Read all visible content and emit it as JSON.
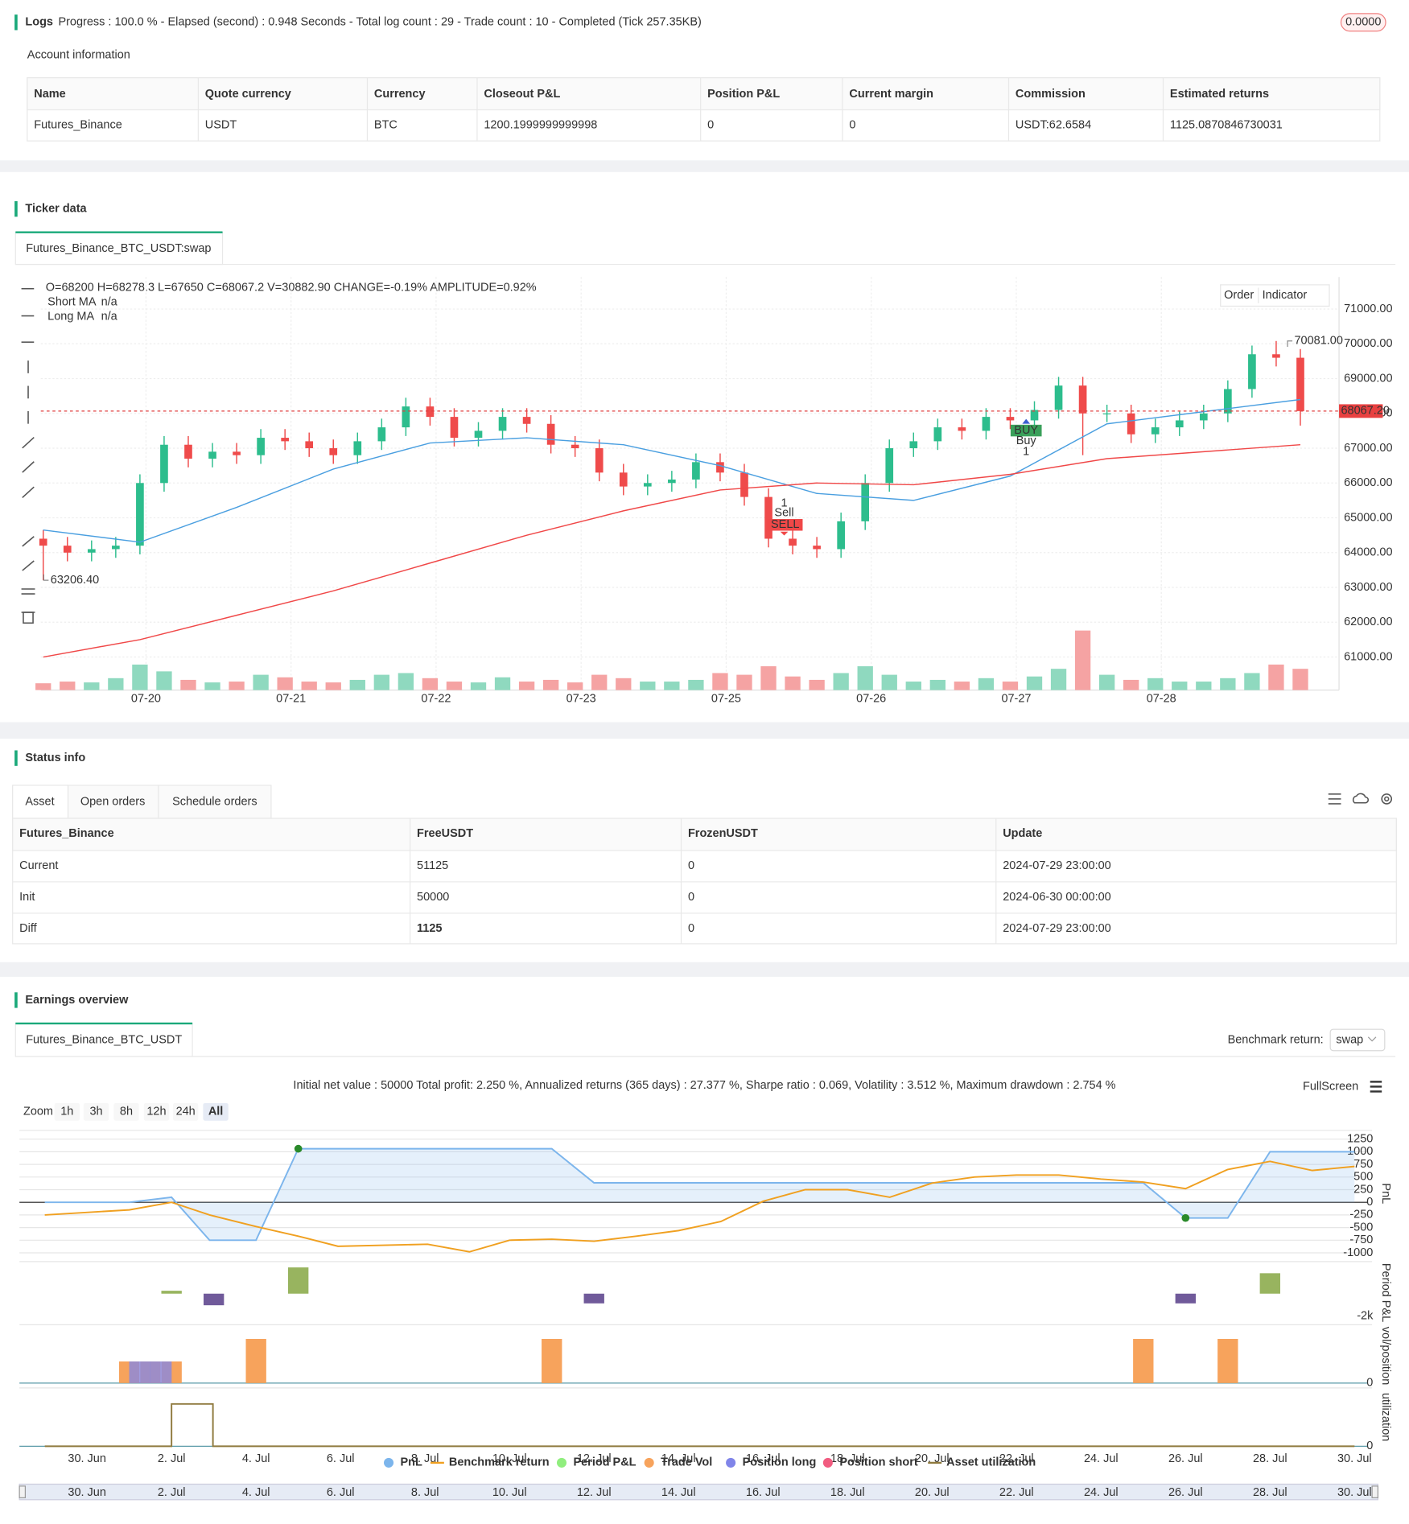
{
  "logs": {
    "title": "Logs",
    "status": "Progress : 100.0 % - Elapsed (second) : 0.948 Seconds - Total log count : 29 - Trade count : 10 - Completed (Tick 257.35KB)",
    "badge": "0.0000"
  },
  "account": {
    "title": "Account information",
    "headers": [
      "Name",
      "Quote currency",
      "Currency",
      "Closeout P&L",
      "Position P&L",
      "Current margin",
      "Commission",
      "Estimated returns"
    ],
    "rows": [
      [
        "Futures_Binance",
        "USDT",
        "BTC",
        "1200.1999999999998",
        "0",
        "0",
        "USDT:62.6584",
        "1125.0870846730031"
      ]
    ]
  },
  "ticker": {
    "title": "Ticker data",
    "tab": "Futures_Binance_BTC_USDT:swap",
    "ohlc": "O=68200 H=68278.3 L=67650 C=68067.2 V=30882.90 CHANGE=-0.19% AMPLITUDE=0.92%",
    "buttons": [
      "Order",
      "Indicator"
    ],
    "signals": [
      {
        "text": "SELL",
        "name": "Sell",
        "count": "1"
      },
      {
        "text": "BUY",
        "name": "Buy",
        "count": "1"
      }
    ]
  },
  "status": {
    "title": "Status info",
    "tabs": [
      "Asset",
      "Open orders",
      "Schedule orders"
    ],
    "headers": [
      "Futures_Binance",
      "FreeUSDT",
      "FrozenUSDT",
      "Update"
    ],
    "rows": [
      [
        "Current",
        "51125",
        "0",
        "2024-07-29 23:00:00"
      ],
      [
        "Init",
        "50000",
        "0",
        "2024-06-30 00:00:00"
      ],
      [
        "Diff",
        "1125",
        "0",
        "2024-07-29 23:00:00"
      ]
    ]
  },
  "earnings": {
    "title": "Earnings overview",
    "tab": "Futures_Binance_BTC_USDT",
    "benchmark_label": "Benchmark return:",
    "benchmark_value": "swap",
    "summary": "Initial net value : 50000 Total profit: 2.250 %, Annualized returns (365 days) : 27.377 %, Sharpe ratio : 0.069, Volatility : 3.512 %, Maximum drawdown : 2.754 %",
    "fullscreen": "FullScreen",
    "zoom_label": "Zoom",
    "zoom": [
      "1h",
      "3h",
      "8h",
      "12h",
      "24h",
      "All"
    ]
  },
  "chart_data": [
    {
      "type": "candlestick",
      "categories": [
        null,
        null,
        null,
        null,
        null,
        null,
        null,
        null,
        null,
        null,
        null,
        null,
        null,
        null,
        null,
        null,
        null,
        null,
        null,
        null,
        null,
        null,
        null,
        null,
        null,
        null,
        null,
        null,
        null,
        null,
        null,
        null,
        null,
        null,
        null,
        null,
        null,
        null,
        null,
        null,
        null,
        null,
        null,
        null,
        null,
        null,
        null,
        null,
        null,
        null,
        null,
        null,
        null
      ],
      "open": [
        64400,
        64200,
        64000,
        64100,
        64200,
        66000,
        67100,
        66700,
        66900,
        66800,
        67300,
        67200,
        67000,
        66800,
        67200,
        67600,
        68200,
        67900,
        67300,
        67500,
        67900,
        67700,
        67100,
        67000,
        66300,
        65900,
        66000,
        66100,
        66600,
        66300,
        65600,
        64400,
        64200,
        64100,
        64900,
        66000,
        67000,
        67200,
        67600,
        67500,
        67900,
        67800,
        68100,
        68800,
        68000,
        68000,
        67400,
        67600,
        67800,
        68000,
        68700,
        69700,
        69600
      ],
      "high": [
        64650,
        64450,
        64350,
        64450,
        66250,
        67350,
        67350,
        67150,
        67150,
        67550,
        67550,
        67450,
        67250,
        67450,
        67850,
        68450,
        68450,
        68150,
        67750,
        68150,
        68150,
        67950,
        67350,
        67250,
        66550,
        66250,
        66350,
        66850,
        66850,
        66550,
        65850,
        64650,
        64450,
        65150,
        66250,
        67250,
        67450,
        67850,
        67850,
        68150,
        68150,
        68350,
        69050,
        69050,
        68250,
        68250,
        67850,
        68050,
        68250,
        68950,
        69950,
        70081,
        69850
      ],
      "low": [
        63206.4,
        63750,
        63750,
        63850,
        63950,
        65750,
        66450,
        66450,
        66550,
        66550,
        66950,
        66750,
        66550,
        66550,
        66950,
        67350,
        67650,
        67050,
        67050,
        67250,
        67450,
        66850,
        66750,
        66050,
        65650,
        65650,
        65750,
        65850,
        66050,
        65350,
        64150,
        63950,
        63850,
        63850,
        64650,
        65750,
        66750,
        66950,
        67250,
        67250,
        67550,
        67550,
        67850,
        66800,
        67750,
        67150,
        67150,
        67350,
        67550,
        67750,
        68450,
        69350,
        67650
      ],
      "close": [
        64200,
        64000,
        64100,
        64200,
        66000,
        67100,
        66700,
        66900,
        66800,
        67300,
        67200,
        67000,
        66800,
        67200,
        67600,
        68200,
        67900,
        67300,
        67500,
        67900,
        67700,
        67100,
        67000,
        66300,
        65900,
        66000,
        66100,
        66600,
        66300,
        65600,
        64400,
        64200,
        64100,
        64900,
        66000,
        67000,
        67200,
        67600,
        67500,
        67900,
        67800,
        68100,
        68800,
        68000,
        68000,
        67400,
        67600,
        67800,
        68000,
        68700,
        69700,
        69600,
        68067.2
      ],
      "volume": [
        8,
        10,
        9,
        14,
        30,
        22,
        12,
        9,
        10,
        18,
        15,
        10,
        9,
        12,
        18,
        20,
        14,
        10,
        9,
        15,
        10,
        12,
        9,
        18,
        14,
        10,
        10,
        12,
        20,
        18,
        28,
        16,
        12,
        20,
        28,
        18,
        10,
        12,
        10,
        14,
        10,
        16,
        25,
        70,
        18,
        12,
        14,
        10,
        10,
        14,
        20,
        30,
        25
      ],
      "colors": {
        "up": "#2dbd8d",
        "down": "#ef4b4b",
        "up_volume": "#8fd9bf",
        "down_volume": "#f5a3a3"
      },
      "xlim": [
        -0.1,
        53.6
      ],
      "ylim": [
        60050,
        71920
      ],
      "volume_ylim": [
        0,
        80
      ],
      "yticks": [
        {
          "value": 61000,
          "label": "61000.00"
        },
        {
          "value": 62000,
          "label": "62000.00"
        },
        {
          "value": 63000,
          "label": "63000.00"
        },
        {
          "value": 64000,
          "label": "64000.00"
        },
        {
          "value": 65000,
          "label": "65000.00"
        },
        {
          "value": 66000,
          "label": "66000.00"
        },
        {
          "value": 67000,
          "label": "67000.00"
        },
        {
          "value": 68000,
          "label": "68000.00"
        },
        {
          "value": 69000,
          "label": "69000.00"
        },
        {
          "value": 70000,
          "label": "70000.00"
        },
        {
          "value": 71000,
          "label": "71000.00"
        }
      ],
      "xticks": [
        {
          "value": 4.25,
          "label": "07-20"
        },
        {
          "value": 10.25,
          "label": "07-21"
        },
        {
          "value": 16.25,
          "label": "07-22"
        },
        {
          "value": 22.25,
          "label": "07-23"
        },
        {
          "value": 28.25,
          "label": "07-25"
        },
        {
          "value": 34.25,
          "label": "07-26"
        },
        {
          "value": 40.25,
          "label": "07-27"
        },
        {
          "value": 46.25,
          "label": "07-28"
        }
      ],
      "grid": true,
      "series": [
        {
          "name": "Short MA",
          "value_label": "n/a",
          "label_color": "#f0a030",
          "color": "#4a9fe0",
          "x": [
            0,
            4,
            8,
            12,
            16,
            20,
            24,
            28,
            32,
            36,
            40,
            44,
            48,
            52
          ],
          "values": [
            64650,
            64300,
            65300,
            66400,
            67150,
            67300,
            67100,
            66500,
            65700,
            65500,
            66200,
            67700,
            68050,
            68400
          ]
        },
        {
          "name": "Long MA",
          "value_label": "n/a",
          "label_color": "#9b59b6",
          "color": "#f04848",
          "x": [
            0,
            4,
            8,
            12,
            16,
            20,
            24,
            28,
            32,
            36,
            40,
            44,
            48,
            52
          ],
          "values": [
            61000,
            61500,
            62200,
            62900,
            63700,
            64500,
            65200,
            65800,
            66000,
            65950,
            66250,
            66700,
            66900,
            67100
          ]
        }
      ],
      "annotations": [
        {
          "value": 70081,
          "label": "70081.00"
        },
        {
          "value": 63206.4,
          "label": "63206.40"
        }
      ],
      "last_price": {
        "value": 68067.2,
        "label": "68067.20"
      }
    },
    {
      "type": "line",
      "y_label": "PnL",
      "xlim": [
        -1.6,
        30.3
      ],
      "ylim": [
        -1115,
        1385
      ],
      "grid": true,
      "yticks": [
        1250,
        1000,
        750,
        500,
        250,
        0,
        -250,
        -500,
        -750,
        -1000
      ],
      "series": [
        {
          "name": "PnL",
          "color": "#7cb5ec",
          "x": [
            -1,
            1,
            2,
            2.9,
            4,
            5,
            11,
            12,
            25,
            26,
            27,
            28,
            30
          ],
          "values": [
            0,
            0,
            100,
            -750,
            -750,
            1060,
            1060,
            385,
            385,
            -310,
            -310,
            1000,
            1000
          ]
        },
        {
          "name": "Benchmark return",
          "color": "#f0a020",
          "x": [
            -1,
            1,
            2,
            2.9,
            4,
            5,
            5.94,
            8.06,
            9.05,
            10,
            11,
            12,
            13,
            14,
            15,
            16,
            17,
            18,
            19,
            20,
            21,
            22,
            23,
            24,
            25,
            26,
            27,
            28,
            29,
            30
          ],
          "values": [
            -250,
            -150,
            0,
            -250,
            -480,
            -670,
            -870,
            -830,
            -980,
            -750,
            -730,
            -770,
            -670,
            -560,
            -380,
            20,
            250,
            250,
            100,
            380,
            500,
            540,
            540,
            460,
            400,
            270,
            650,
            810,
            630,
            710
          ]
        }
      ]
    },
    {
      "type": "bar",
      "y_label": "Period P&L",
      "xlim": [
        -1.6,
        30.3
      ],
      "ylim": [
        -2350,
        2700
      ],
      "yticks": [
        {
          "value": -2000,
          "label": "-2k"
        }
      ],
      "bar_colors": {
        "positive": "#98b45f",
        "negative": "#705a9a"
      },
      "series": [
        {
          "name": "Period P&L",
          "color": "#90ee7e",
          "x": [
            2,
            3,
            5,
            12,
            26,
            28
          ],
          "values": [
            260,
            -1040,
            2350,
            -870,
            -870,
            1830
          ]
        }
      ]
    },
    {
      "type": "bar",
      "y_label": "vol/position",
      "xlim": [
        -1.6,
        30.3
      ],
      "ylim": [
        0,
        60
      ],
      "yticks": [
        0
      ],
      "series": [
        {
          "name": "Trade Vol",
          "color": "#f7a35c",
          "x": [
            1,
            1.5,
            2,
            4,
            11,
            25,
            27
          ],
          "values": [
            23,
            23,
            23,
            47,
            47,
            47,
            47
          ]
        },
        {
          "name": "Position long",
          "color": "#8085e9",
          "x": [
            1.25,
            1.75
          ],
          "values": [
            23,
            23
          ]
        },
        {
          "name": "Position short",
          "color": "#f15c80",
          "x": [],
          "values": []
        }
      ]
    },
    {
      "type": "line",
      "y_label": "utilization",
      "xlim": [
        -1.6,
        30.3
      ],
      "ylim": [
        0,
        60
      ],
      "yticks": [
        0
      ],
      "xticks": [
        {
          "value": 0,
          "label": "30. Jun"
        },
        {
          "value": 2,
          "label": "2. Jul"
        },
        {
          "value": 4,
          "label": "4. Jul"
        },
        {
          "value": 6,
          "label": "6. Jul"
        },
        {
          "value": 8,
          "label": "8. Jul"
        },
        {
          "value": 10,
          "label": "10. Jul"
        },
        {
          "value": 12,
          "label": "12. Jul"
        },
        {
          "value": 14,
          "label": "14. Jul"
        },
        {
          "value": 16,
          "label": "16. Jul"
        },
        {
          "value": 18,
          "label": "18. Jul"
        },
        {
          "value": 20,
          "label": "20. Jul"
        },
        {
          "value": 22,
          "label": "22. Jul"
        },
        {
          "value": 24,
          "label": "24. Jul"
        },
        {
          "value": 26,
          "label": "26. Jul"
        },
        {
          "value": 28,
          "label": "28. Jul"
        },
        {
          "value": 30,
          "label": "30. Jul"
        }
      ],
      "series": [
        {
          "name": "Asset utilization",
          "color": "#8f7a3e",
          "x": [
            -1,
            2,
            2,
            2.98,
            2.98,
            30
          ],
          "values": [
            0,
            0,
            45,
            45,
            0,
            0
          ]
        }
      ]
    }
  ]
}
